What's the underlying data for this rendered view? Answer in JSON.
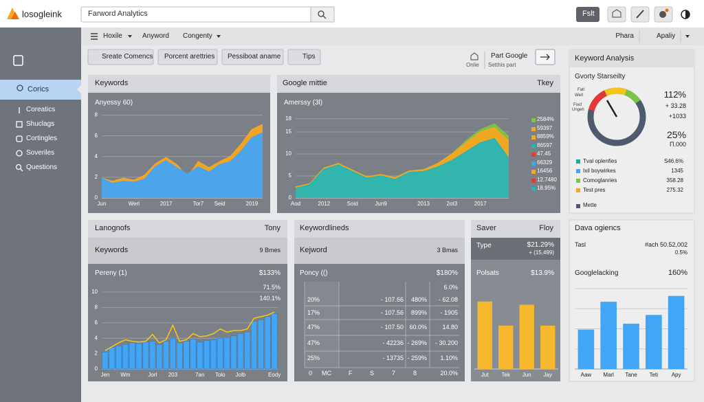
{
  "header": {
    "logo": "losogleink",
    "search": "Farword Analytics",
    "button": "Fslt"
  },
  "nav": {
    "items": [
      "Hoxile",
      "Anyword",
      "Congenty"
    ],
    "right": [
      "Phara",
      "Apaliy"
    ]
  },
  "sidebar": {
    "active": "Corics",
    "items": [
      "Coreatics",
      "Shuclags",
      "Cortingles",
      "Soveriles",
      "Questions"
    ]
  },
  "toolbar": {
    "buttons": [
      "Sreate Comencs",
      "Porcent arettries",
      "Pessiboat aname",
      "Tips"
    ],
    "link_title": "Part Google",
    "link_sub": [
      "Onlie",
      "Setthis part"
    ]
  },
  "keywords_panel": {
    "title": "Keywords",
    "chart": {
      "type": "area",
      "label": "Anyessy 60)",
      "categories": [
        "Jun",
        null,
        null,
        "Werl",
        null,
        null,
        "2017",
        null,
        null,
        "Tor7",
        null,
        "Seid",
        null,
        null,
        "2019",
        null
      ],
      "ylim": [
        0,
        8.5
      ],
      "yticks": [
        0,
        2,
        4,
        6,
        8
      ],
      "grid": true,
      "series": [
        {
          "color": "#f5a623",
          "values": [
            1.9,
            1.6,
            1.9,
            1.7,
            2.2,
            3.3,
            3.9,
            3.2,
            2.0,
            3.5,
            2.9,
            3.5,
            4.0,
            5.2,
            6.6,
            7.1
          ]
        },
        {
          "color": "#42a5f5",
          "values": [
            1.9,
            1.4,
            1.6,
            1.5,
            1.8,
            3.0,
            3.6,
            2.9,
            2.3,
            3.0,
            2.5,
            3.2,
            3.5,
            4.5,
            5.8,
            6.3
          ]
        }
      ]
    }
  },
  "google_panel": {
    "title": "Google mittie",
    "right": "Tkey",
    "chart": {
      "type": "area",
      "label": "Amerssy (3l)",
      "categories": [
        "Aod",
        null,
        "2012",
        null,
        "Soid",
        null,
        "Jun9",
        null,
        null,
        "2013",
        null,
        "2ot3",
        null,
        "2017",
        null,
        null
      ],
      "ylim": [
        0,
        20
      ],
      "yticks": [
        0,
        5,
        10,
        15,
        18
      ],
      "grid": true,
      "series": [
        {
          "color": "#7cc444",
          "values": [
            2.5,
            3.2,
            6.8,
            7.8,
            6.3,
            4.8,
            5.3,
            4.6,
            6.1,
            6.4,
            7.8,
            10,
            13,
            15.5,
            16.8,
            14
          ]
        },
        {
          "color": "#f5a623",
          "values": [
            2.5,
            3.2,
            6.8,
            7.8,
            6.3,
            4.8,
            5.3,
            4.6,
            6.1,
            6.4,
            7.8,
            10,
            12.5,
            15,
            16,
            13
          ]
        },
        {
          "color": "#26b5b5",
          "values": [
            2.2,
            3.0,
            6.5,
            7.5,
            6.0,
            4.5,
            5.0,
            4.2,
            5.8,
            6.0,
            7.0,
            8.5,
            10.5,
            12.5,
            13.5,
            9
          ]
        }
      ]
    },
    "legend": [
      {
        "color": "#7cc444",
        "label": "2584%"
      },
      {
        "color": "#f5a623",
        "label": "59397"
      },
      {
        "color": "#f5a623",
        "label": "8859%"
      },
      {
        "color": "#26b5b5",
        "label": "86597"
      },
      {
        "color": "#e53935",
        "label": "47.45"
      },
      {
        "color": "#42a5f5",
        "label": "66329"
      },
      {
        "color": "#f5a623",
        "label": "16456"
      },
      {
        "color": "#e53935",
        "label": "12.7480"
      },
      {
        "color": "#26b5b5",
        "label": "18.95%"
      }
    ]
  },
  "analysis_panel": {
    "title": "Keyword Analysis",
    "subtitle": "Gvorty Starseilty",
    "gauge_labels": [
      "Fatl",
      "Werl",
      "Foof",
      "Ungeh"
    ],
    "stats": [
      "112%",
      "+ 33.28",
      "+1033",
      "25%",
      "Π.000"
    ],
    "legend": [
      {
        "color": "#26a69a",
        "label": "Tval oplenfies",
        "value": "S46.6%"
      },
      {
        "color": "#42a5f5",
        "label": "Ixil boywirkes",
        "value": "1345"
      },
      {
        "color": "#7cc444",
        "label": "Comoglanries",
        "value": "358.28"
      },
      {
        "color": "#f5a623",
        "label": "Test pres",
        "value": "275.32"
      }
    ],
    "footer": "Mette"
  },
  "lang_panel": {
    "title": "Lanognofs",
    "right": "Tony",
    "subtitle": "Keywords",
    "subtitle_right": "9 Bmes",
    "chart": {
      "type": "bar",
      "label": "Pereny (1)",
      "label_right": [
        "$133%",
        "71.5%",
        "140.1%"
      ],
      "categories": [
        "Jen",
        null,
        null,
        "Wm",
        null,
        null,
        null,
        "Jorl",
        null,
        null,
        "203",
        null,
        null,
        null,
        "7an",
        null,
        null,
        "Tolo",
        null,
        null,
        "Jolb",
        null,
        null,
        null,
        null,
        "Eody"
      ],
      "ylim": [
        0,
        10
      ],
      "yticks": [
        0,
        2,
        4,
        6,
        8,
        10
      ],
      "grid": true,
      "color": "#42a5f5",
      "values": [
        2.2,
        2.8,
        3.0,
        3.2,
        3.4,
        3.3,
        3.5,
        3.6,
        3.2,
        3.6,
        4.0,
        3.4,
        3.6,
        3.9,
        3.5,
        3.7,
        3.8,
        4.0,
        4.1,
        4.3,
        4.6,
        4.8,
        6.2,
        6.4,
        6.8,
        7.2
      ],
      "line_color": "#f5c518",
      "line_values": [
        2.4,
        2.9,
        3.4,
        3.8,
        3.6,
        3.5,
        3.6,
        4.5,
        3.4,
        3.8,
        5.7,
        3.6,
        3.8,
        4.6,
        4.2,
        4.3,
        4.6,
        5.2,
        4.8,
        5.0,
        5.0,
        5.2,
        6.6,
        6.8,
        7.0,
        7.4
      ]
    }
  },
  "table_panel": {
    "title": "Keywordlineds",
    "subtitle": "Kejword",
    "subtitle_right": "3 Bmas",
    "label": "Poncy (()",
    "label_right": "$180%",
    "note": "6.0%",
    "rows": [
      [
        "20%",
        "- 107.66",
        "480%",
        "- 62.08"
      ],
      [
        "17%",
        "- 107.56",
        "899%",
        "- 1905"
      ],
      [
        "47%",
        "- 107.50",
        "60.0%",
        "14.80"
      ],
      [
        "47%",
        "- 42236",
        "- 269%",
        "- 30.200"
      ],
      [
        "25%",
        "- 13735",
        "- 259%",
        "1.10%"
      ]
    ],
    "footer": [
      "0",
      "MC",
      "F",
      "S",
      "7",
      "8",
      "20.0%"
    ]
  },
  "saver_panel": {
    "title": "Saver",
    "right": "Floy",
    "type_label": "Type",
    "type_value": "$21.29%",
    "type_sub": "+ (15,499)",
    "chart": {
      "type": "bar",
      "label": "Polsats",
      "label_right": "$13.9%",
      "categories": [
        "Jut",
        "Tek",
        "Jun",
        "Jay"
      ],
      "values": [
        8.4,
        5.4,
        8.0,
        5.4
      ],
      "ylim": [
        0,
        10
      ],
      "color": "#f5b82e"
    }
  },
  "data_panel": {
    "title": "Dava ogiencs",
    "row_label": "Tasl",
    "row_value": "#ach 50.52,002",
    "row_sub": "0.5%",
    "chart": {
      "type": "bar",
      "label": "Googlelacking",
      "label_right": "160%",
      "categories": [
        "Aaw",
        "Marl",
        "Tane",
        "Teti",
        "Apy"
      ],
      "values": [
        5.4,
        9.2,
        6.2,
        7.4,
        10
      ],
      "ylim": [
        0,
        11
      ],
      "grid": true,
      "color": "#42a5f5"
    }
  }
}
